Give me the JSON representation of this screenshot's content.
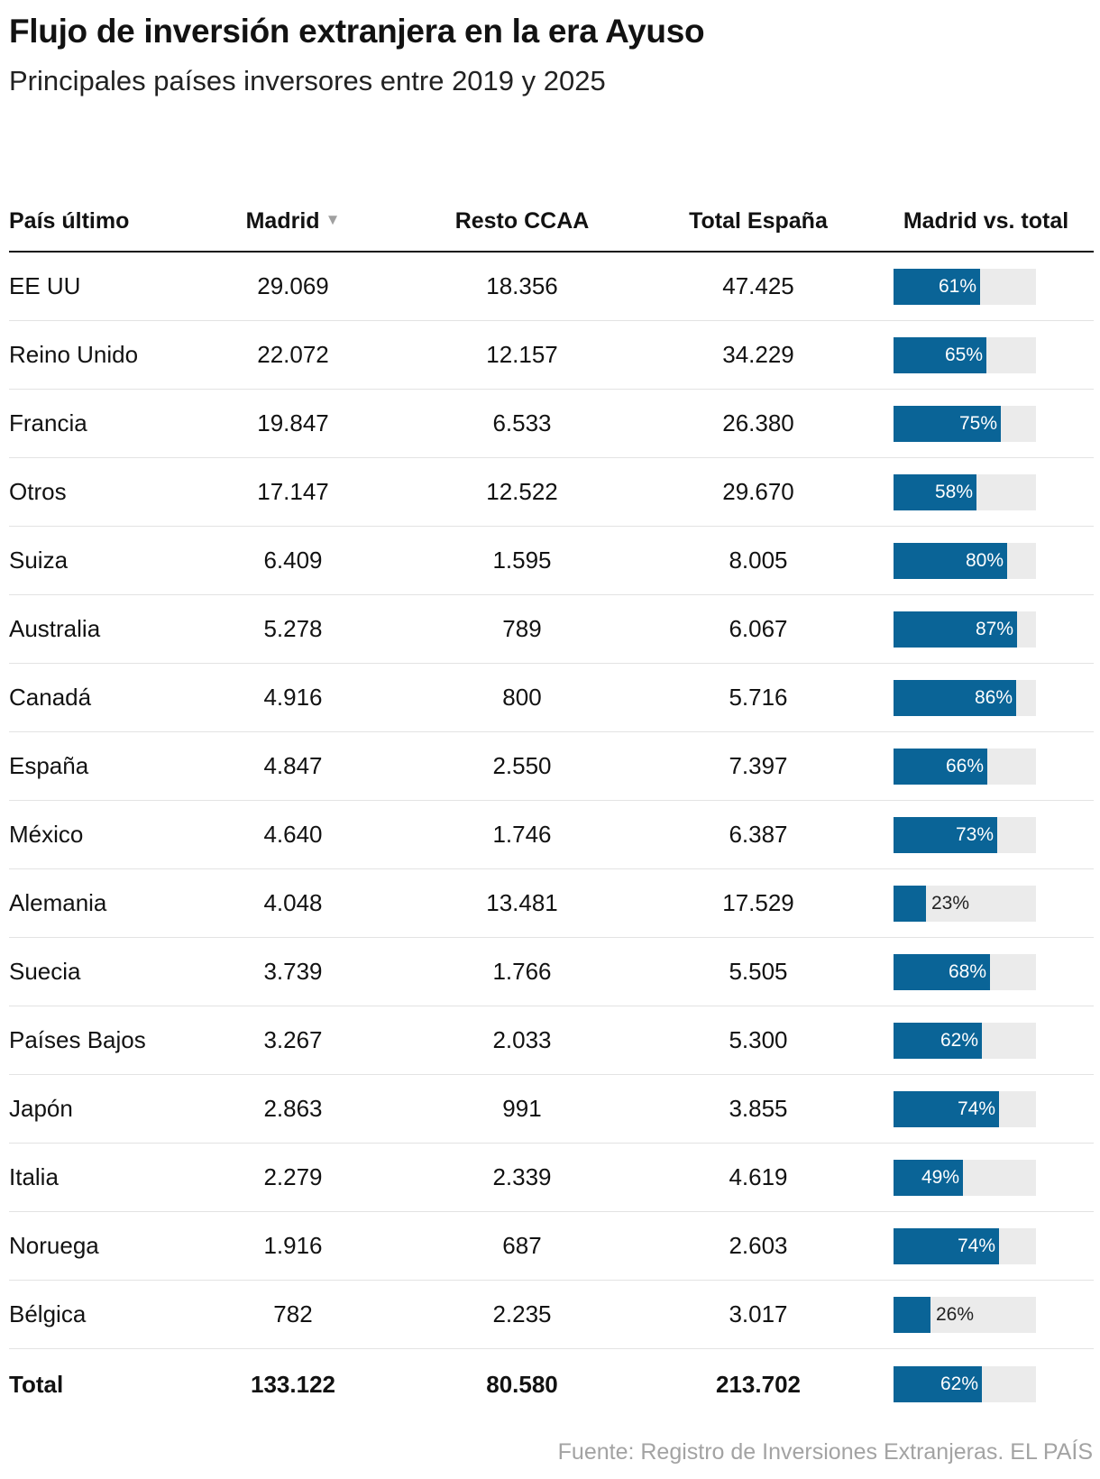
{
  "title": "Flujo de inversión extranjera en la era Ayuso",
  "subtitle": "Principales países inversores entre 2019 y 2025",
  "source": "Fuente: Registro de Inversiones Extranjeras. EL PAÍS",
  "colors": {
    "bar": "#0a6497",
    "track": "#ebebeb",
    "sort_arrow": "#a0a0a0",
    "source_text": "#a3a3a3"
  },
  "chart_data": {
    "type": "table",
    "columns": [
      "País último",
      "Madrid",
      "Resto CCAA",
      "Total España",
      "Madrid vs. total"
    ],
    "sorted_by": "Madrid",
    "sort_icon": "sort-down-triangle",
    "rows": [
      {
        "country": "EE UU",
        "madrid": "29.069",
        "resto": "18.356",
        "total": "47.425",
        "pct": 61,
        "pct_label": "61%"
      },
      {
        "country": "Reino Unido",
        "madrid": "22.072",
        "resto": "12.157",
        "total": "34.229",
        "pct": 65,
        "pct_label": "65%"
      },
      {
        "country": "Francia",
        "madrid": "19.847",
        "resto": "6.533",
        "total": "26.380",
        "pct": 75,
        "pct_label": "75%"
      },
      {
        "country": "Otros",
        "madrid": "17.147",
        "resto": "12.522",
        "total": "29.670",
        "pct": 58,
        "pct_label": "58%"
      },
      {
        "country": "Suiza",
        "madrid": "6.409",
        "resto": "1.595",
        "total": "8.005",
        "pct": 80,
        "pct_label": "80%"
      },
      {
        "country": "Australia",
        "madrid": "5.278",
        "resto": "789",
        "total": "6.067",
        "pct": 87,
        "pct_label": "87%"
      },
      {
        "country": "Canadá",
        "madrid": "4.916",
        "resto": "800",
        "total": "5.716",
        "pct": 86,
        "pct_label": "86%"
      },
      {
        "country": "España",
        "madrid": "4.847",
        "resto": "2.550",
        "total": "7.397",
        "pct": 66,
        "pct_label": "66%"
      },
      {
        "country": "México",
        "madrid": "4.640",
        "resto": "1.746",
        "total": "6.387",
        "pct": 73,
        "pct_label": "73%"
      },
      {
        "country": "Alemania",
        "madrid": "4.048",
        "resto": "13.481",
        "total": "17.529",
        "pct": 23,
        "pct_label": "23%"
      },
      {
        "country": "Suecia",
        "madrid": "3.739",
        "resto": "1.766",
        "total": "5.505",
        "pct": 68,
        "pct_label": "68%"
      },
      {
        "country": "Países Bajos",
        "madrid": "3.267",
        "resto": "2.033",
        "total": "5.300",
        "pct": 62,
        "pct_label": "62%"
      },
      {
        "country": "Japón",
        "madrid": "2.863",
        "resto": "991",
        "total": "3.855",
        "pct": 74,
        "pct_label": "74%"
      },
      {
        "country": "Italia",
        "madrid": "2.279",
        "resto": "2.339",
        "total": "4.619",
        "pct": 49,
        "pct_label": "49%"
      },
      {
        "country": "Noruega",
        "madrid": "1.916",
        "resto": "687",
        "total": "2.603",
        "pct": 74,
        "pct_label": "74%"
      },
      {
        "country": "Bélgica",
        "madrid": "782",
        "resto": "2.235",
        "total": "3.017",
        "pct": 26,
        "pct_label": "26%"
      }
    ],
    "total_row": {
      "country": "Total",
      "madrid": "133.122",
      "resto": "80.580",
      "total": "213.702",
      "pct": 62,
      "pct_label": "62%"
    }
  }
}
